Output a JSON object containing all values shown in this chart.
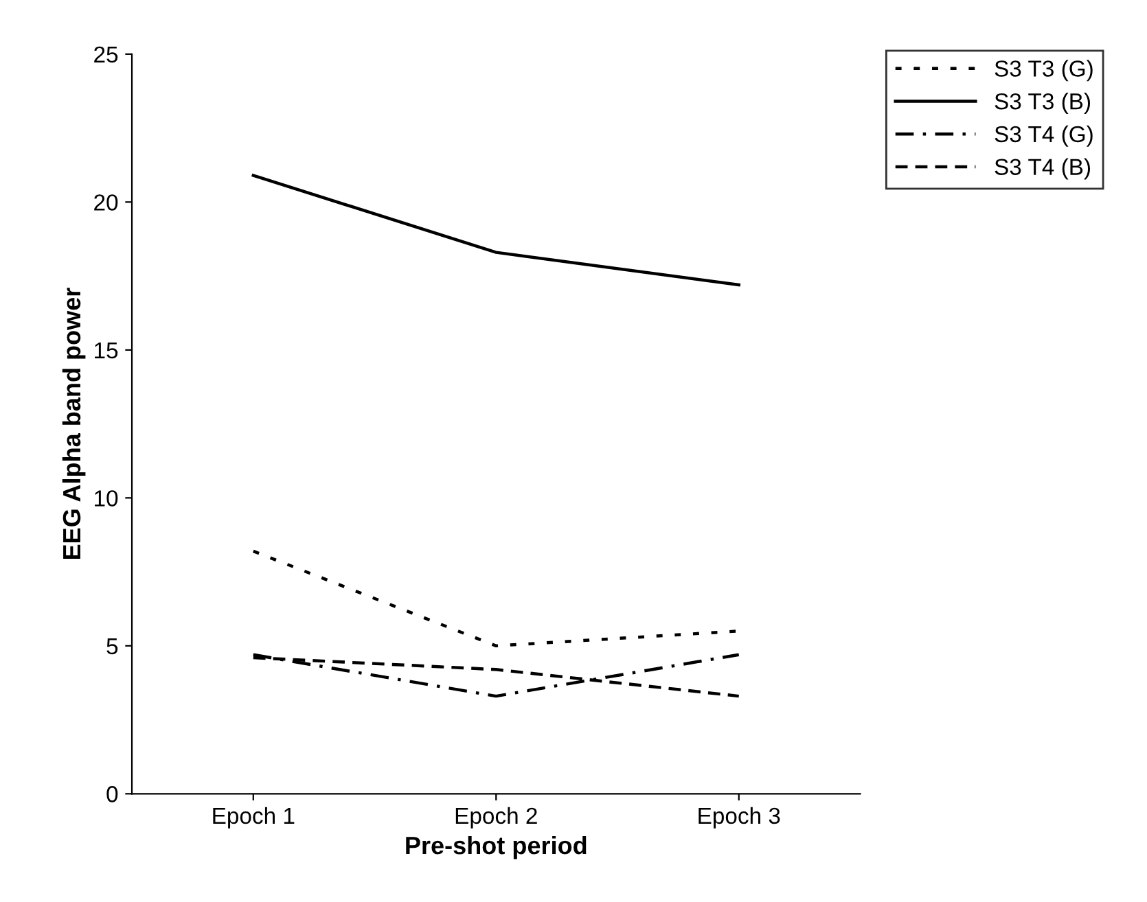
{
  "chart_data": {
    "type": "line",
    "xlabel": "Pre-shot period",
    "ylabel": "EEG Alpha band power",
    "categories": [
      "Epoch 1",
      "Epoch 2",
      "Epoch 3"
    ],
    "series": [
      {
        "name": "S3 T3 (G)",
        "color": "#000000",
        "line_style": "dotted",
        "values": [
          8.2,
          5.0,
          5.5
        ]
      },
      {
        "name": "S3 T3 (B)",
        "color": "#000000",
        "line_style": "solid",
        "values": [
          20.9,
          18.3,
          17.2
        ]
      },
      {
        "name": "S3 T4 (G)",
        "color": "#000000",
        "line_style": "dashdot",
        "values": [
          4.7,
          3.3,
          4.7
        ]
      },
      {
        "name": "S3 T4 (B)",
        "color": "#000000",
        "line_style": "dashed",
        "values": [
          4.6,
          4.2,
          3.3
        ]
      }
    ],
    "ylim": [
      0,
      25
    ],
    "yticks": [
      0,
      5,
      10,
      15,
      20,
      25
    ],
    "grid": false,
    "legend": "top right",
    "marker": "none"
  }
}
